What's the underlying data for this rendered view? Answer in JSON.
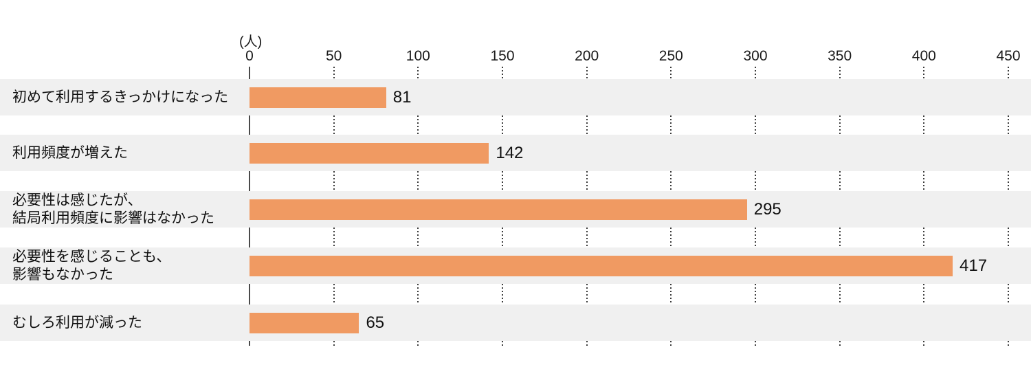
{
  "chart_data": {
    "type": "bar",
    "orientation": "horizontal",
    "title": "",
    "unit_label": "(人)",
    "categories": [
      "初めて利用するきっかけになった",
      "利用頻度が増えた",
      "必要性は感じたが、\n結局利用頻度に影響はなかった",
      "必要性を感じることも、\n影響もなかった",
      "むしろ利用が減った"
    ],
    "values": [
      81,
      142,
      295,
      417,
      65
    ],
    "xlim": [
      0,
      450
    ],
    "ticks": [
      0,
      50,
      100,
      150,
      200,
      250,
      300,
      350,
      400,
      450
    ],
    "legend": "none",
    "grid": "dotted-vertical-in-gaps",
    "bar_color": "#F09A62",
    "band_color": "#F0F0F0",
    "axis_color": "#4a4a4a",
    "text_color": "#111111"
  }
}
